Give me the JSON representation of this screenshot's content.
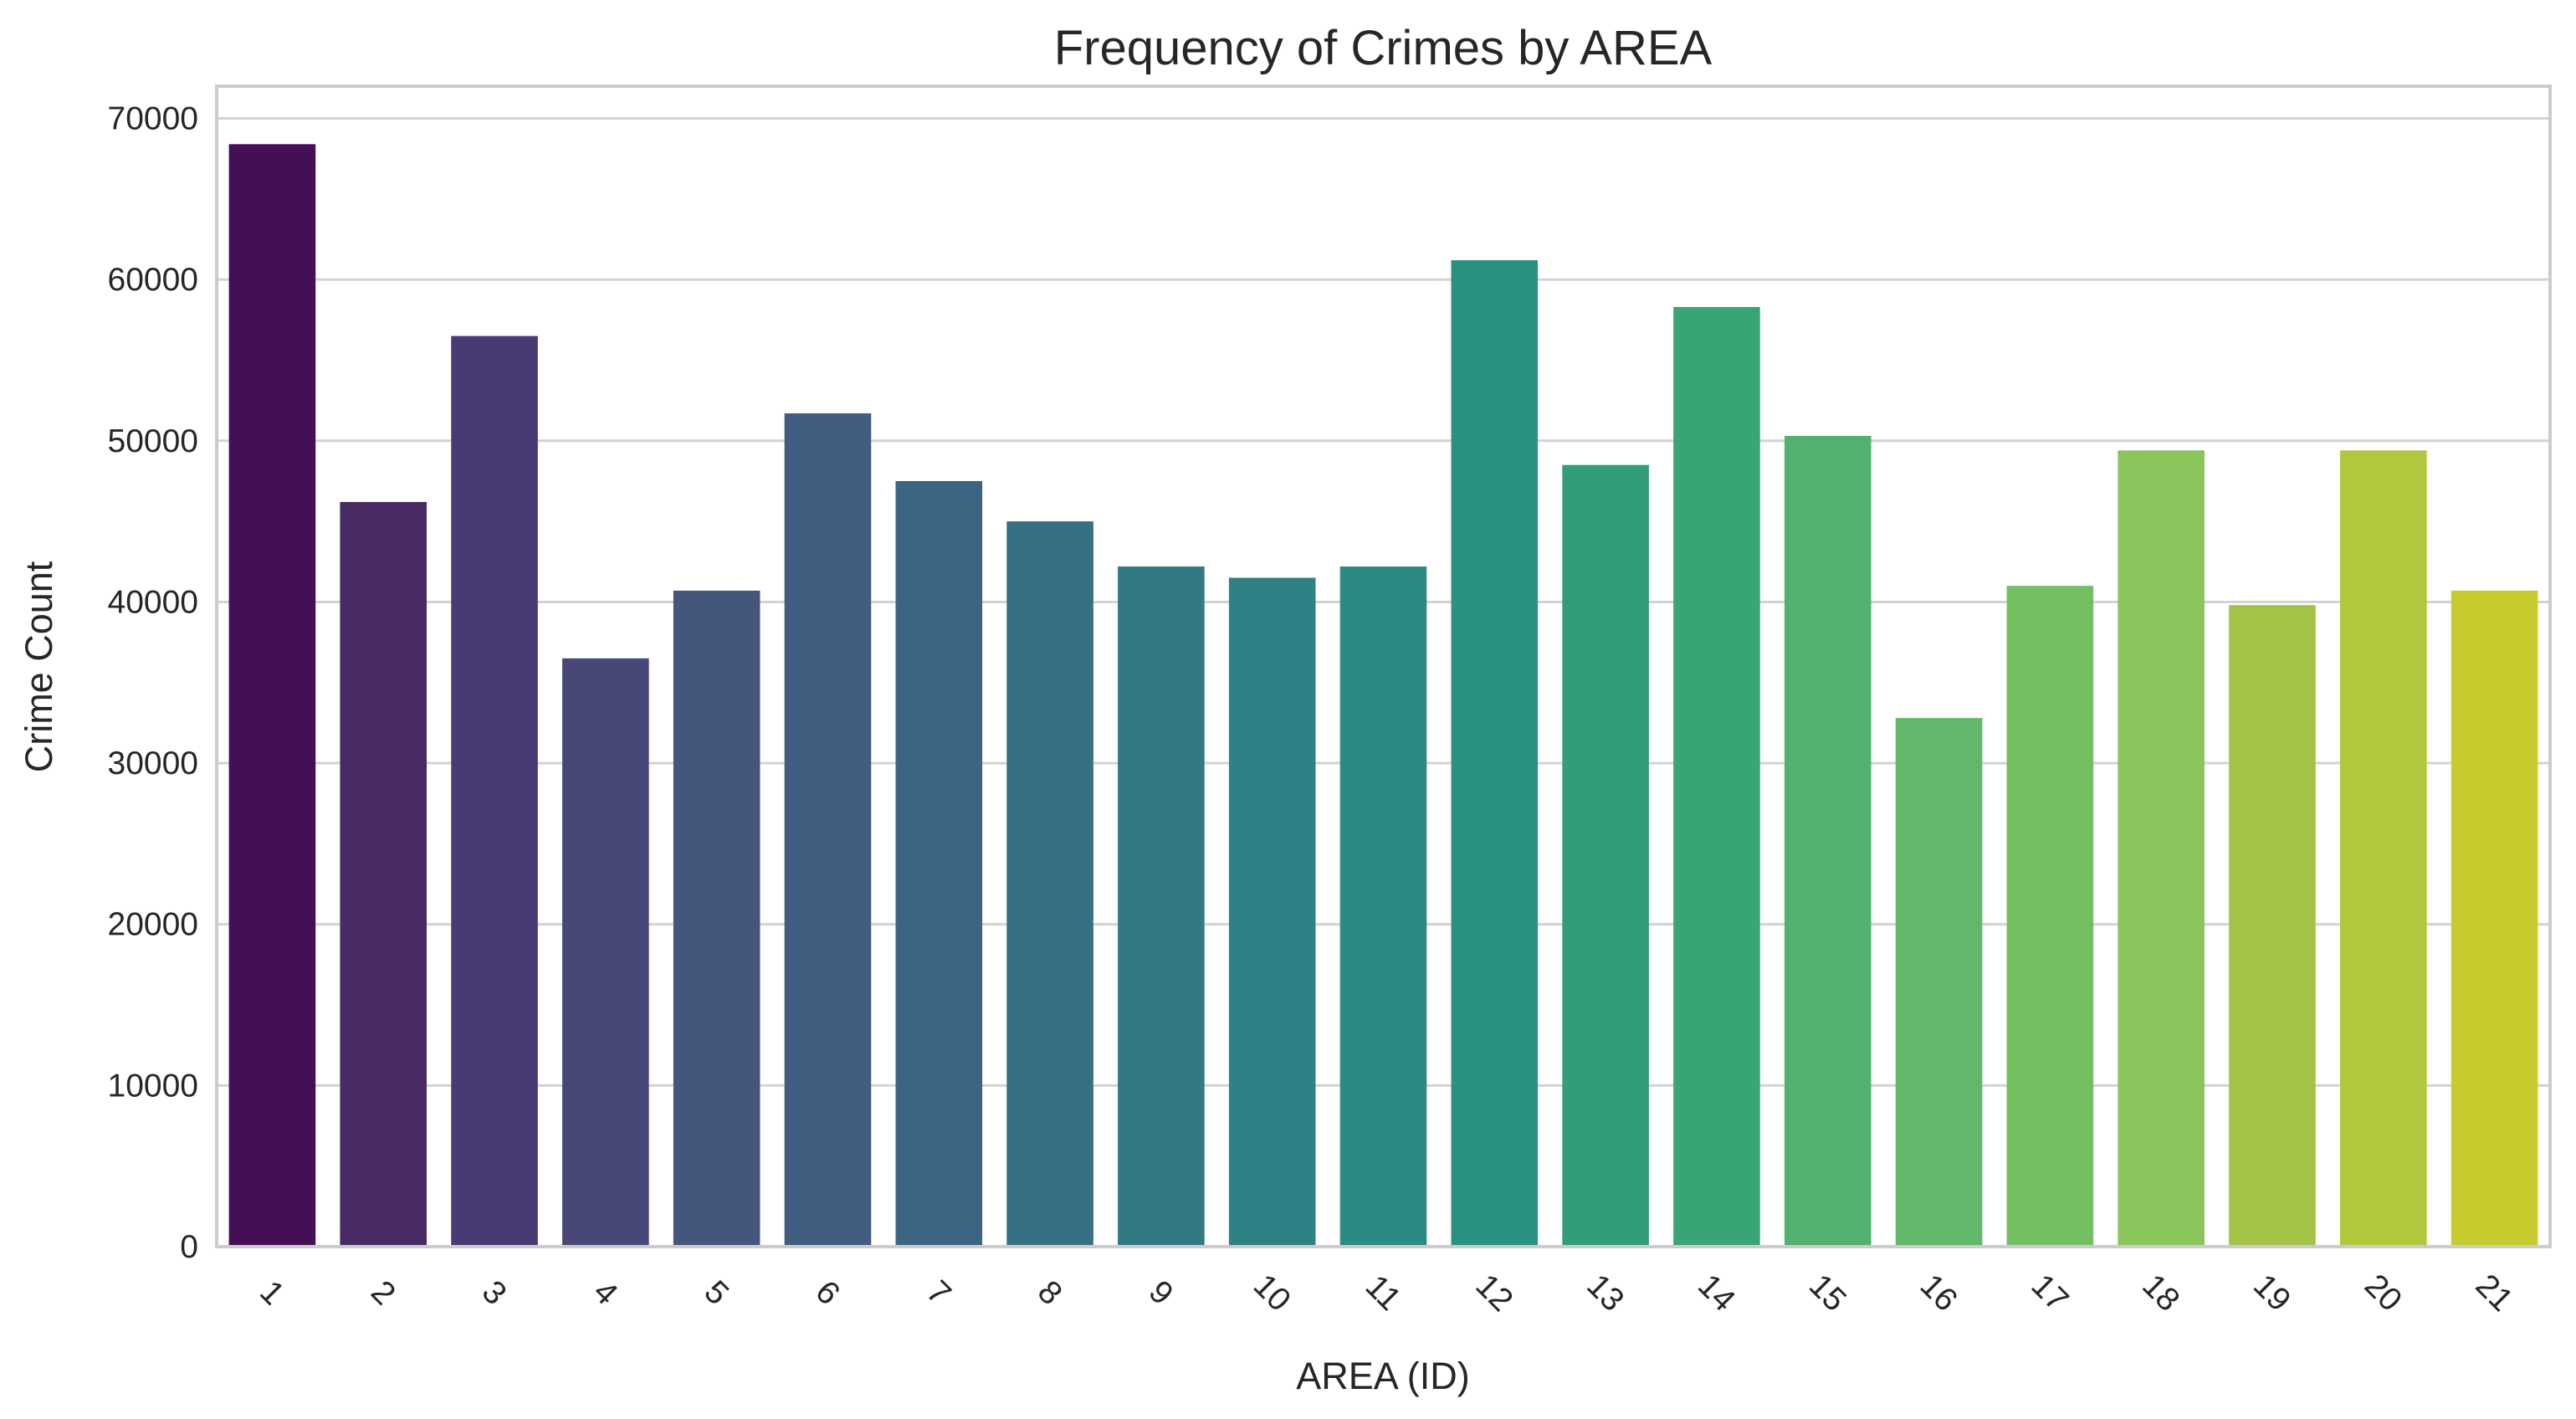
{
  "chart_data": {
    "type": "bar",
    "title": "Frequency of Crimes by AREA",
    "xlabel": "AREA (ID)",
    "ylabel": "Crime Count",
    "categories": [
      "1",
      "2",
      "3",
      "4",
      "5",
      "6",
      "7",
      "8",
      "9",
      "10",
      "11",
      "12",
      "13",
      "14",
      "15",
      "16",
      "17",
      "18",
      "19",
      "20",
      "21"
    ],
    "values": [
      68400,
      46200,
      56500,
      36500,
      40700,
      51700,
      47500,
      45000,
      42200,
      41500,
      42200,
      61200,
      48500,
      58300,
      50300,
      32800,
      41000,
      49400,
      39800,
      49400,
      40700
    ],
    "ylim": [
      0,
      72000
    ],
    "yticks": [
      0,
      10000,
      20000,
      30000,
      40000,
      50000,
      60000,
      70000
    ],
    "ytick_labels": [
      "0",
      "10000",
      "20000",
      "30000",
      "40000",
      "50000",
      "60000",
      "70000"
    ],
    "grid": "horizontal",
    "xtick_rotation": 45,
    "colors": [
      "#440f54",
      "#482a65",
      "#483a72",
      "#474878",
      "#45567d",
      "#415d80",
      "#3b6581",
      "#376f83",
      "#327984",
      "#2d8285",
      "#2d8a82",
      "#2a9280",
      "#329e79",
      "#3aa574",
      "#50b26e",
      "#61b76a",
      "#74bf62",
      "#89c55a",
      "#a3c346",
      "#b0c83b",
      "#c8cb2d"
    ]
  }
}
